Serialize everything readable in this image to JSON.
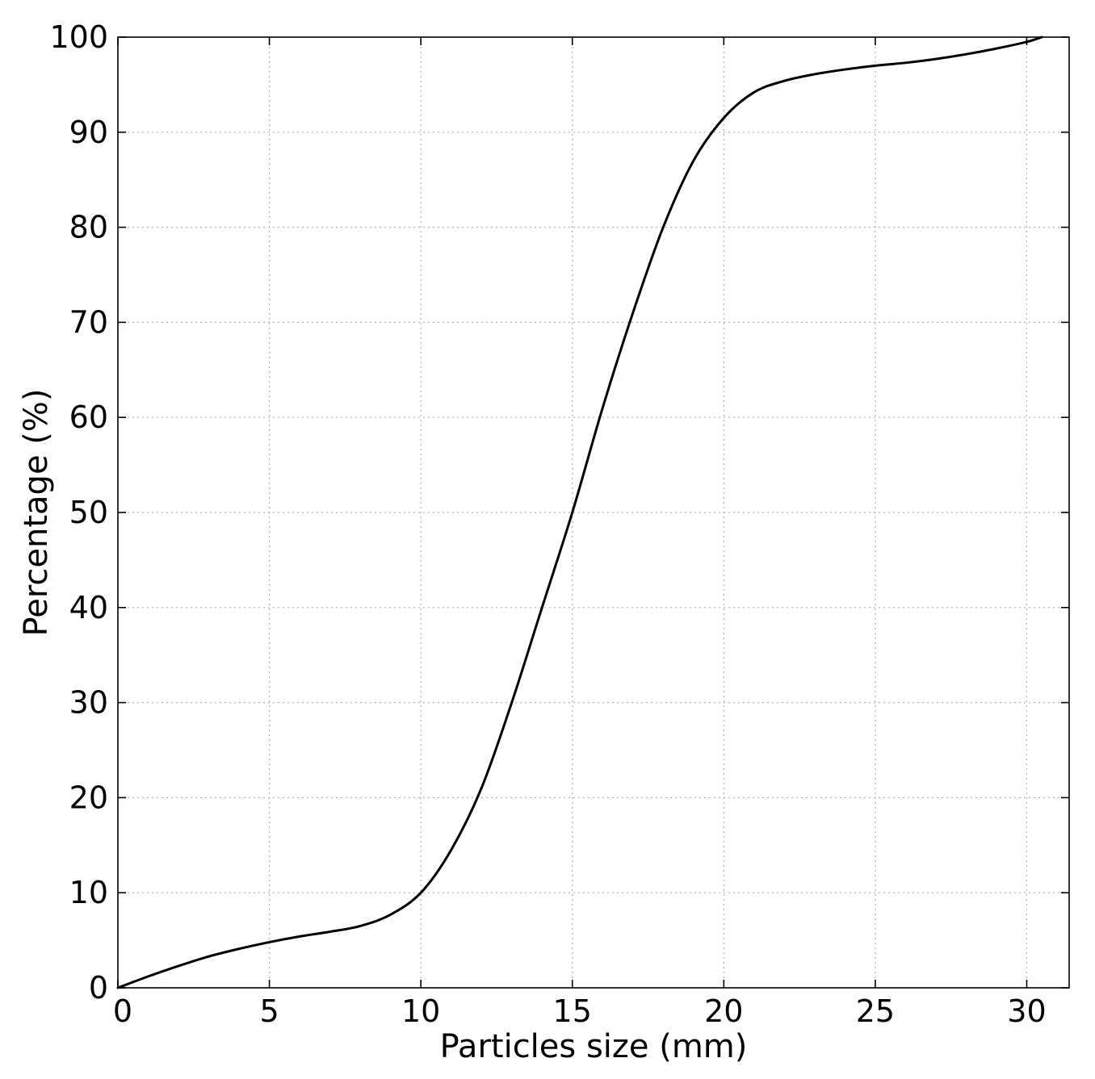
{
  "chart_data": {
    "type": "line",
    "title": "",
    "xlabel": "Particles size (mm)",
    "ylabel": "Percentage (%)",
    "xlim": [
      0,
      31.4
    ],
    "ylim": [
      0,
      100
    ],
    "xticks": [
      0,
      5,
      10,
      15,
      20,
      25,
      30
    ],
    "yticks": [
      0,
      10,
      20,
      30,
      40,
      50,
      60,
      70,
      80,
      90,
      100
    ],
    "grid": true,
    "legend": "none",
    "series": [
      {
        "color": "#000000",
        "x": [
          0,
          1,
          2,
          3,
          4,
          5,
          6,
          7,
          8,
          9,
          10,
          11,
          12,
          13,
          14,
          15,
          16,
          17,
          18,
          19,
          20,
          21,
          22,
          23,
          24,
          25,
          26,
          27,
          28,
          29,
          30,
          30.5
        ],
        "y": [
          0,
          1.2,
          2.3,
          3.3,
          4.1,
          4.8,
          5.4,
          5.9,
          6.5,
          7.7,
          10,
          14.5,
          21,
          30,
          40,
          50,
          61,
          71,
          80,
          87,
          91.5,
          94.2,
          95.4,
          96.1,
          96.6,
          97,
          97.3,
          97.7,
          98.2,
          98.8,
          99.5,
          100
        ]
      }
    ]
  }
}
